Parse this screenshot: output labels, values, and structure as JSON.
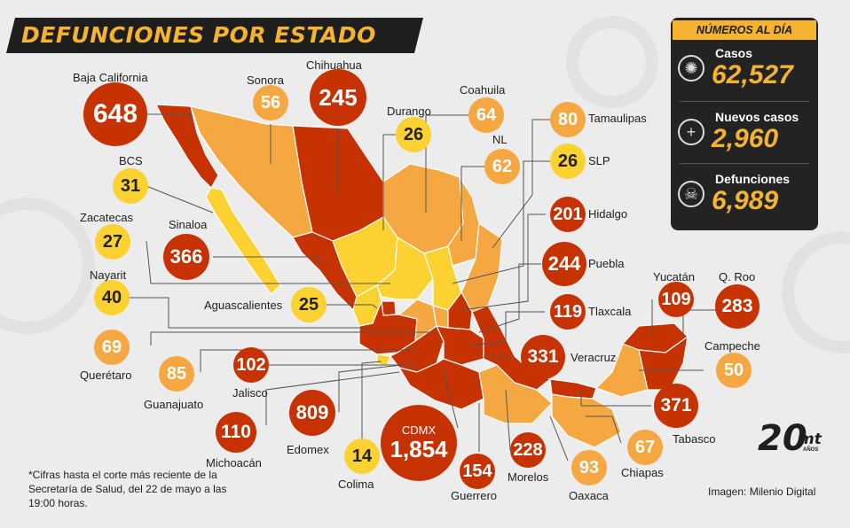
{
  "title": "DEFUNCIONES POR ESTADO",
  "panel": {
    "header": "NÚMEROS AL DÍA",
    "rows": [
      {
        "label": "Casos",
        "value": "62,527",
        "icon": "virus-icon"
      },
      {
        "label": "Nuevos casos",
        "value": "2,960",
        "icon": "plus-icon"
      },
      {
        "label": "Defunciones",
        "value": "6,989",
        "icon": "skull-icon"
      }
    ]
  },
  "colors": {
    "high": "#c73203",
    "mid": "#f5a742",
    "low": "#fcd232",
    "dark": "#232323",
    "accent": "#f6b331"
  },
  "states": [
    {
      "name": "Baja California",
      "deaths": "648",
      "level": "high"
    },
    {
      "name": "Sonora",
      "deaths": "56",
      "level": "mid"
    },
    {
      "name": "Chihuahua",
      "deaths": "245",
      "level": "high"
    },
    {
      "name": "Durango",
      "deaths": "26",
      "level": "low"
    },
    {
      "name": "Coahuila",
      "deaths": "64",
      "level": "mid"
    },
    {
      "name": "Tamaulipas",
      "deaths": "80",
      "level": "mid"
    },
    {
      "name": "NL",
      "deaths": "62",
      "level": "mid"
    },
    {
      "name": "SLP",
      "deaths": "26",
      "level": "low"
    },
    {
      "name": "Hidalgo",
      "deaths": "201",
      "level": "high"
    },
    {
      "name": "Puebla",
      "deaths": "244",
      "level": "high"
    },
    {
      "name": "Tlaxcala",
      "deaths": "119",
      "level": "high"
    },
    {
      "name": "Veracruz",
      "deaths": "331",
      "level": "high"
    },
    {
      "name": "Yucatán",
      "deaths": "109",
      "level": "high"
    },
    {
      "name": "Q. Roo",
      "deaths": "283",
      "level": "high"
    },
    {
      "name": "Campeche",
      "deaths": "50",
      "level": "mid"
    },
    {
      "name": "Tabasco",
      "deaths": "371",
      "level": "high"
    },
    {
      "name": "Chiapas",
      "deaths": "67",
      "level": "mid"
    },
    {
      "name": "Oaxaca",
      "deaths": "93",
      "level": "mid"
    },
    {
      "name": "Morelos",
      "deaths": "228",
      "level": "high"
    },
    {
      "name": "Guerrero",
      "deaths": "154",
      "level": "high"
    },
    {
      "name": "CDMX",
      "deaths": "1,854",
      "level": "high"
    },
    {
      "name": "Colima",
      "deaths": "14",
      "level": "low"
    },
    {
      "name": "Edomex",
      "deaths": "809",
      "level": "high"
    },
    {
      "name": "Michoacán",
      "deaths": "110",
      "level": "high"
    },
    {
      "name": "Jalisco",
      "deaths": "102",
      "level": "high"
    },
    {
      "name": "Guanajuato",
      "deaths": "85",
      "level": "mid"
    },
    {
      "name": "Querétaro",
      "deaths": "69",
      "level": "mid"
    },
    {
      "name": "Nayarit",
      "deaths": "40",
      "level": "low"
    },
    {
      "name": "Zacatecas",
      "deaths": "27",
      "level": "low"
    },
    {
      "name": "Sinaloa",
      "deaths": "366",
      "level": "high"
    },
    {
      "name": "BCS",
      "deaths": "31",
      "level": "low"
    },
    {
      "name": "Aguascalientes",
      "deaths": "25",
      "level": "low"
    }
  ],
  "footnote": "*Cifras hasta el corte más reciente de la Secretaría de Salud, del 22 de mayo a las 19:00 horas.",
  "credit": "Imagen: Milenio Digital",
  "logo": {
    "number": "20",
    "brand": "mt",
    "sub": "AÑOS"
  }
}
